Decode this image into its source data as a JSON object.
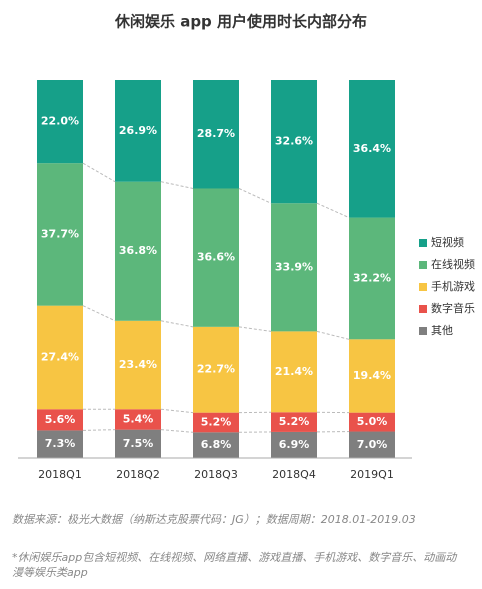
{
  "chart_data": {
    "type": "stacked_bar",
    "title": "休闲娱乐 app 用户使用时长内部分布",
    "categories": [
      "2018Q1",
      "2018Q2",
      "2018Q3",
      "2018Q4",
      "2019Q1"
    ],
    "ylim": [
      0,
      100
    ],
    "legend": "right",
    "series": [
      {
        "name": "短视频",
        "color": "#16a089",
        "values": [
          22.0,
          26.9,
          28.7,
          32.6,
          36.4
        ],
        "value_labels": [
          "22.0%",
          "26.9%",
          "28.7%",
          "32.6%",
          "36.4%"
        ]
      },
      {
        "name": "在线视频",
        "color": "#5cb77b",
        "values": [
          37.7,
          36.8,
          36.6,
          33.9,
          32.2
        ],
        "value_labels": [
          "37.7%",
          "36.8%",
          "36.6%",
          "33.9%",
          "32.2%"
        ]
      },
      {
        "name": "手机游戏",
        "color": "#f7c543",
        "values": [
          27.4,
          23.4,
          22.7,
          21.4,
          19.4
        ],
        "value_labels": [
          "27.4%",
          "23.4%",
          "22.7%",
          "21.4%",
          "19.4%"
        ]
      },
      {
        "name": "数字音乐",
        "color": "#e9524b",
        "values": [
          5.6,
          5.4,
          5.2,
          5.2,
          5.0
        ],
        "value_labels": [
          "5.6%",
          "5.4%",
          "5.2%",
          "5.2%",
          "5.0%"
        ]
      },
      {
        "name": "其他",
        "color": "#7f7f7f",
        "values": [
          7.3,
          7.5,
          6.8,
          6.9,
          7.0
        ],
        "value_labels": [
          "7.3%",
          "7.5%",
          "6.8%",
          "6.9%",
          "7.0%"
        ]
      }
    ],
    "source": "数据来源：极光大数据（纳斯达克股票代码：JG）；数据周期：2018.01-2019.03",
    "note": "*休闲娱乐app包含短视频、在线视频、网络直播、游戏直播、手机游戏、数字音乐、动画动漫等娱乐类app"
  }
}
